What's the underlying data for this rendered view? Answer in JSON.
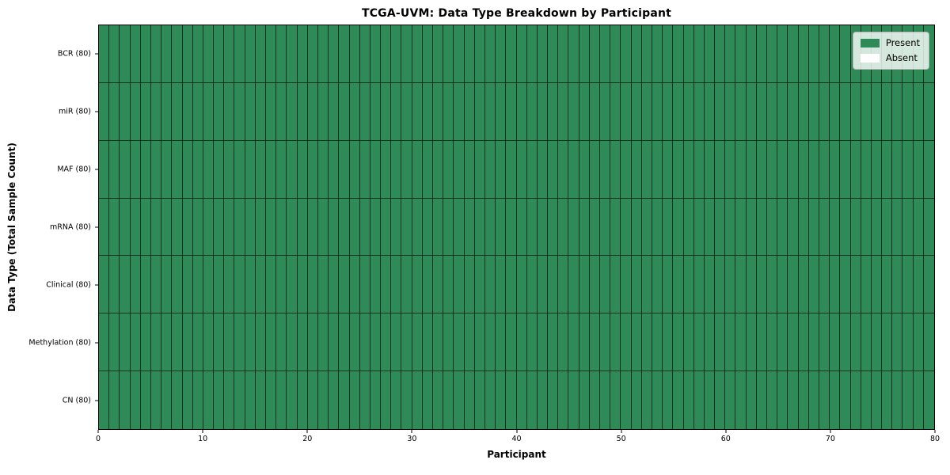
{
  "title": "TCGA-UVM: Data Type Breakdown by Participant",
  "chart_data": {
    "type": "heatmap",
    "title": "TCGA-UVM: Data Type Breakdown by Participant",
    "xlabel": "Participant",
    "ylabel": "Data Type (Total Sample Count)",
    "participants": 80,
    "x_range": [
      0,
      80
    ],
    "x_ticks": [
      0,
      10,
      20,
      30,
      40,
      50,
      60,
      70,
      80
    ],
    "rows": [
      {
        "label": "BCR (80)",
        "name": "BCR",
        "total": 80,
        "present": 80,
        "absent": 0
      },
      {
        "label": "miR (80)",
        "name": "miR",
        "total": 80,
        "present": 80,
        "absent": 0
      },
      {
        "label": "MAF (80)",
        "name": "MAF",
        "total": 80,
        "present": 80,
        "absent": 0
      },
      {
        "label": "mRNA (80)",
        "name": "mRNA",
        "total": 80,
        "present": 80,
        "absent": 0
      },
      {
        "label": "Clinical (80)",
        "name": "Clinical",
        "total": 80,
        "present": 80,
        "absent": 0
      },
      {
        "label": "Methylation (80)",
        "name": "Methylation",
        "total": 80,
        "present": 80,
        "absent": 0
      },
      {
        "label": "CN (80)",
        "name": "CN",
        "total": 80,
        "present": 80,
        "absent": 0
      }
    ],
    "legend": {
      "position": "upper right",
      "entries": [
        {
          "label": "Present",
          "color": "#2E8B57"
        },
        {
          "label": "Absent",
          "color": "#FFFFFF"
        }
      ]
    },
    "colors": {
      "present": "#2E8B57",
      "absent": "#FFFFFF",
      "cell_edge": "#16231A",
      "spine": "#000000"
    },
    "grid": false
  }
}
